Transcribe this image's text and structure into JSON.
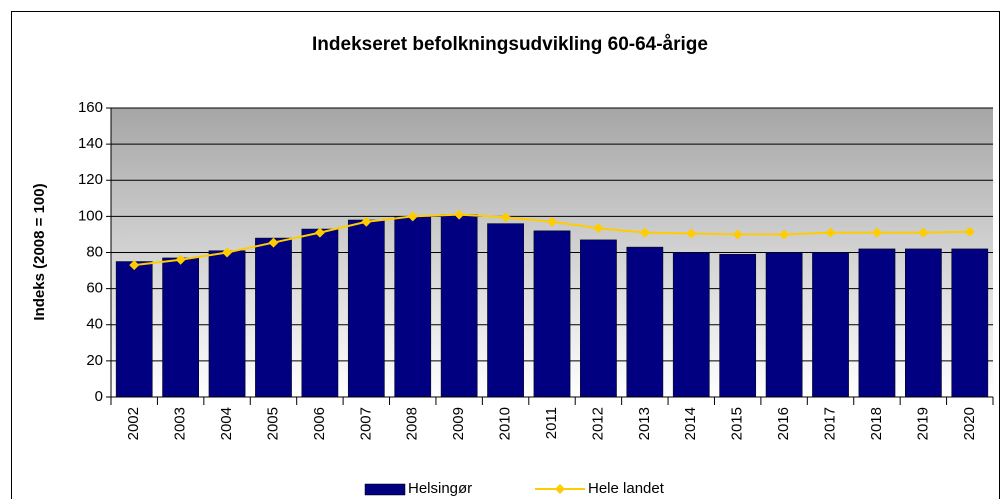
{
  "chart_data": {
    "type": "bar_line",
    "title": "Indekseret befolkningsudvikling 60-64-årige",
    "y_label": "Indeks (2008 = 100)",
    "categories": [
      "2002",
      "2003",
      "2004",
      "2005",
      "2006",
      "2007",
      "2008",
      "2009",
      "2010",
      "2011",
      "2012",
      "2013",
      "2014",
      "2015",
      "2016",
      "2017",
      "2018",
      "2019",
      "2020"
    ],
    "series": [
      {
        "name": "Helsingør",
        "type": "bar",
        "color": "#000080",
        "values": [
          75,
          77,
          81,
          88,
          93,
          98,
          100,
          101,
          96,
          92,
          87,
          83,
          80,
          79,
          80,
          80,
          82,
          82,
          82
        ]
      },
      {
        "name": "Hele landet",
        "type": "line",
        "color": "#ffcc00",
        "values": [
          73,
          76,
          80,
          85.5,
          91,
          97,
          100,
          101,
          99.5,
          97,
          93.5,
          91,
          90.5,
          90,
          90,
          91,
          91,
          91,
          91.5
        ]
      }
    ],
    "ylim": [
      0,
      160
    ],
    "yticks": [
      0,
      20,
      40,
      60,
      80,
      100,
      120,
      140,
      160
    ],
    "grid": true,
    "legend": "bottom"
  }
}
